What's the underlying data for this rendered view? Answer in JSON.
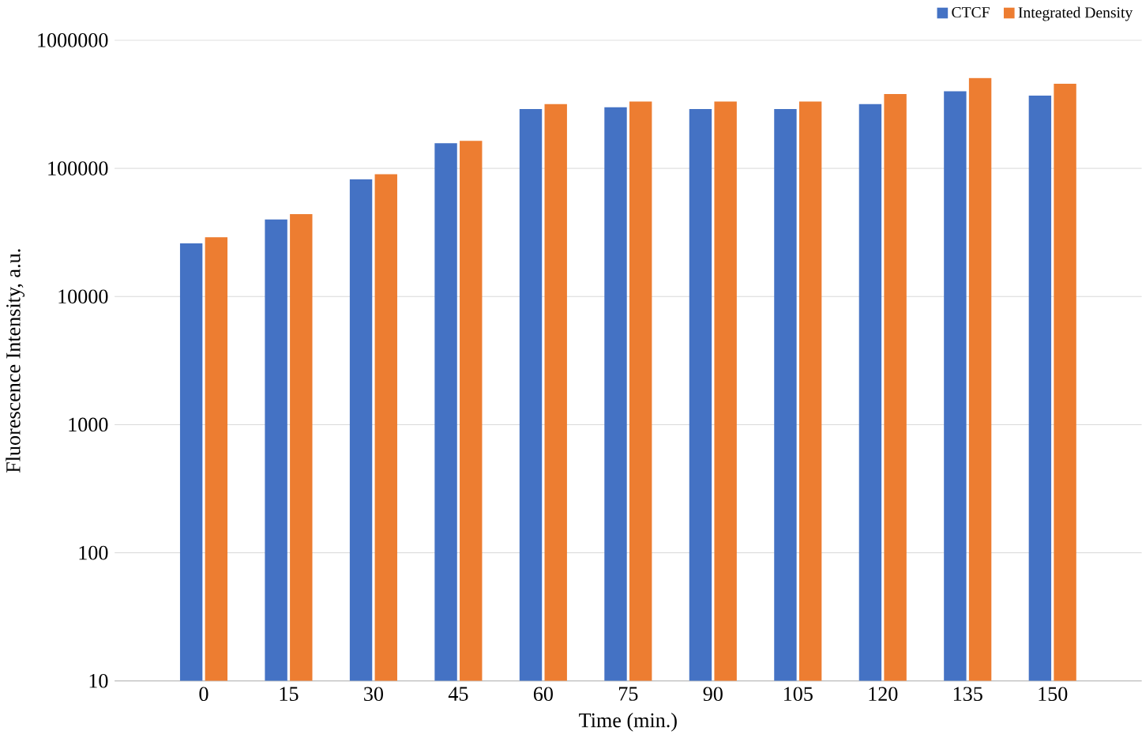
{
  "chart_data": {
    "type": "bar",
    "xlabel": "Time  (min.)",
    "ylabel": "Fluorescence  Intensity,  a.u.",
    "categories": [
      "0",
      "15",
      "30",
      "45",
      "60",
      "75",
      "90",
      "105",
      "120",
      "135",
      "150"
    ],
    "series": [
      {
        "name": "CTCF",
        "color": "#4472c4",
        "values": [
          26000,
          40000,
          82000,
          157000,
          290000,
          300000,
          290000,
          290000,
          317000,
          400000,
          370000
        ]
      },
      {
        "name": "Integrated Density",
        "color": "#ed7d31",
        "values": [
          29000,
          44000,
          90000,
          164000,
          317000,
          333000,
          333000,
          333000,
          380000,
          507000,
          458000
        ]
      }
    ],
    "log": true,
    "ylim": [
      10,
      1000000
    ],
    "yticks": [
      10,
      100,
      1000,
      10000,
      100000,
      1000000
    ],
    "grid": "y",
    "legend": "top right"
  }
}
